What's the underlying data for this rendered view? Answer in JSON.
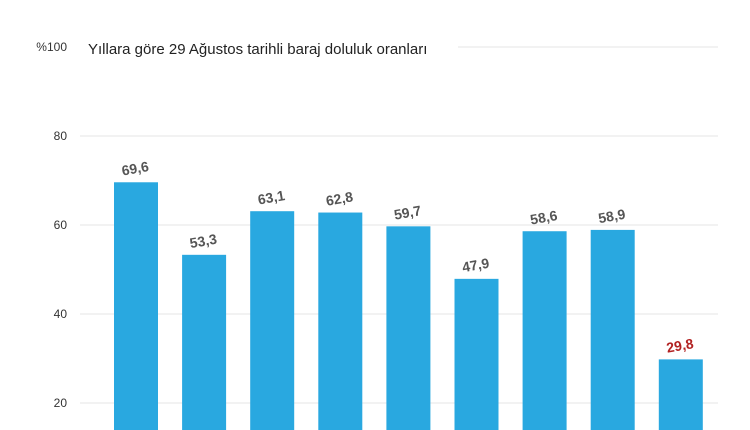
{
  "chart_data": {
    "type": "bar",
    "title": "Yıllara göre 29 Ağustos tarihli baraj doluluk oranları",
    "xlabel": "",
    "ylabel": "",
    "ylim": [
      0,
      100
    ],
    "yticks": [
      20,
      40,
      60,
      80,
      100
    ],
    "ytick_labels": [
      "20",
      "40",
      "60",
      "80",
      "%100"
    ],
    "categories": [
      "",
      "",
      "",
      "",
      "",
      "",
      "",
      "",
      ""
    ],
    "values": [
      69.6,
      53.3,
      63.1,
      62.8,
      59.7,
      47.9,
      58.6,
      58.9,
      29.8
    ],
    "value_labels": [
      "69,6",
      "53,3",
      "63,1",
      "62,8",
      "59,7",
      "47,9",
      "58,6",
      "58,9",
      "29,8"
    ],
    "highlight_index": 8,
    "grid": true,
    "colors": {
      "bar": "#29a8e0",
      "label": "#555555",
      "highlight_label": "#b22222",
      "grid": "#e6e6e6"
    }
  }
}
